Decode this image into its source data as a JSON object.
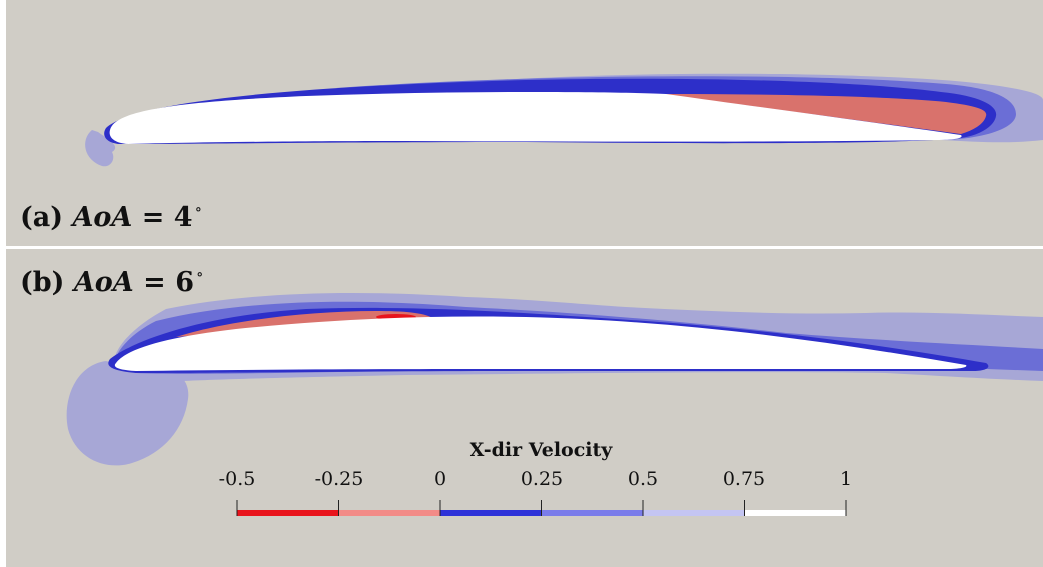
{
  "panels": [
    {
      "id": "a",
      "label_prefix": "(a) ",
      "label_math": "AoA",
      "label_eq": " = ",
      "label_value": "4",
      "label_unit": "∘"
    },
    {
      "id": "b",
      "label_prefix": "(b) ",
      "label_math": "AoA",
      "label_eq": " = ",
      "label_value": "6",
      "label_unit": "∘"
    }
  ],
  "colorbar": {
    "title": "X-dir Velocity",
    "ticks": [
      "-0.5",
      "-0.25",
      "0",
      "0.25",
      "0.5",
      "0.75",
      "1"
    ],
    "colors": [
      "#e8141c",
      "#f28b87",
      "#2e32d8",
      "#7a7cea",
      "#c4c5f2",
      "#ffffff"
    ]
  },
  "colors": {
    "background": "#d0cdc6",
    "airfoil": "#ffffff",
    "separation": "#d9726c",
    "boundary_layer": "#2d2fc9",
    "wake_mid": "#6b6ed6",
    "wake_light": "#a7a7d6"
  }
}
